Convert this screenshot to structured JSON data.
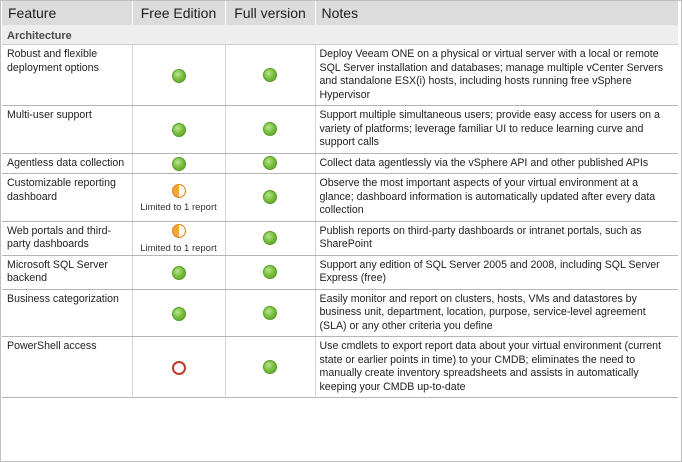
{
  "header": {
    "feature": "Feature",
    "free": "Free Edition",
    "full": "Full version",
    "notes": "Notes"
  },
  "section": "Architecture",
  "legend": {
    "full": "full-support-icon",
    "half": "partial-support-icon",
    "none": "not-available-icon"
  },
  "colors": {
    "header_bg": "#dcdcdc",
    "section_bg": "#eeeeee",
    "full_green": "#7dc242",
    "partial_orange": "#f3a43a",
    "none_red": "#c0392b"
  },
  "rows": [
    {
      "feature": "Robust and flexible deployment options",
      "free": "full",
      "free_note": "",
      "full": "full",
      "notes": "Deploy Veeam ONE on a physical or virtual server with a local or remote SQL Server installation and databases; manage multiple vCenter Servers and standalone ESX(i) hosts, including hosts running free vSphere Hypervisor"
    },
    {
      "feature": "Multi-user support",
      "free": "full",
      "free_note": "",
      "full": "full",
      "notes": "Support multiple simultaneous users; provide easy access for users on a variety of platforms; leverage familiar UI to reduce learning curve and support calls"
    },
    {
      "feature": "Agentless data collection",
      "free": "full",
      "free_note": "",
      "full": "full",
      "notes": "Collect data agentlessly via the vSphere API and other published APIs"
    },
    {
      "feature": "Customizable reporting dashboard",
      "free": "half",
      "free_note": "Limited to 1 report",
      "full": "full",
      "notes": "Observe the most important aspects of your virtual environment at a glance; dashboard information is automatically updated after every data collection"
    },
    {
      "feature": "Web portals and third-party dashboards",
      "free": "half",
      "free_note": "Limited to 1 report",
      "full": "full",
      "notes": "Publish reports on third-party dashboards or intranet portals, such as SharePoint"
    },
    {
      "feature": "Microsoft SQL Server backend",
      "free": "full",
      "free_note": "",
      "full": "full",
      "notes": "Support any edition of SQL Server 2005 and 2008, including SQL Server Express (free)"
    },
    {
      "feature": "Business categorization",
      "free": "full",
      "free_note": "",
      "full": "full",
      "notes": "Easily monitor and report on clusters, hosts, VMs and datastores by business unit, department, location, purpose, service-level agreement (SLA) or any other criteria you define"
    },
    {
      "feature": "PowerShell access",
      "free": "none",
      "free_note": "",
      "full": "full",
      "notes": "Use cmdlets to export report data about your virtual environment (current state or earlier points in time) to your CMDB; eliminates the need to manually create inventory spreadsheets and assists in automatically keeping your CMDB up-to-date"
    }
  ]
}
